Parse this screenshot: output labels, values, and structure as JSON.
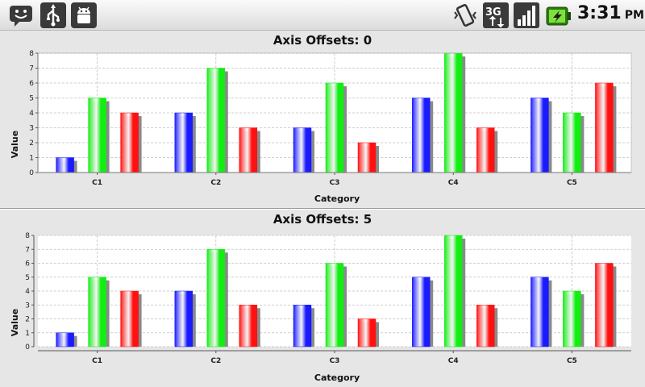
{
  "status_bar": {
    "time": "3:31",
    "ampm": "PM",
    "left_icons": [
      "messaging-icon",
      "usb-icon",
      "android-debug-icon"
    ],
    "right_icons": [
      "vibrate-icon",
      "3g-data-icon",
      "signal-icon",
      "battery-charging-icon"
    ]
  },
  "colors": {
    "series": [
      "#1a1aff",
      "#11ee11",
      "#ff1111"
    ],
    "panel_bg": "#e6e6e6",
    "plot_bg": "#ffffff",
    "grid": "#c0c0c0"
  },
  "chart_data": [
    {
      "type": "bar",
      "title": "Axis Offsets: 0",
      "xlabel": "Category",
      "ylabel": "Value",
      "categories": [
        "C1",
        "C2",
        "C3",
        "C4",
        "C5"
      ],
      "yticks": [
        "0",
        "1",
        "2",
        "3",
        "4",
        "5",
        "6",
        "7",
        "8"
      ],
      "ylim": [
        0,
        8
      ],
      "grid": true,
      "axis_offset": 0,
      "series": [
        {
          "values": [
            1,
            4,
            3,
            5,
            5
          ]
        },
        {
          "values": [
            5,
            7,
            6,
            8,
            4
          ]
        },
        {
          "values": [
            4,
            3,
            2,
            3,
            6
          ]
        }
      ]
    },
    {
      "type": "bar",
      "title": "Axis Offsets: 5",
      "xlabel": "Category",
      "ylabel": "Value",
      "categories": [
        "C1",
        "C2",
        "C3",
        "C4",
        "C5"
      ],
      "yticks": [
        "0",
        "1",
        "2",
        "3",
        "4",
        "5",
        "6",
        "7",
        "8"
      ],
      "ylim": [
        0,
        8
      ],
      "grid": true,
      "axis_offset": 5,
      "series": [
        {
          "values": [
            1,
            4,
            3,
            5,
            5
          ]
        },
        {
          "values": [
            5,
            7,
            6,
            8,
            4
          ]
        },
        {
          "values": [
            4,
            3,
            2,
            3,
            6
          ]
        }
      ]
    }
  ]
}
